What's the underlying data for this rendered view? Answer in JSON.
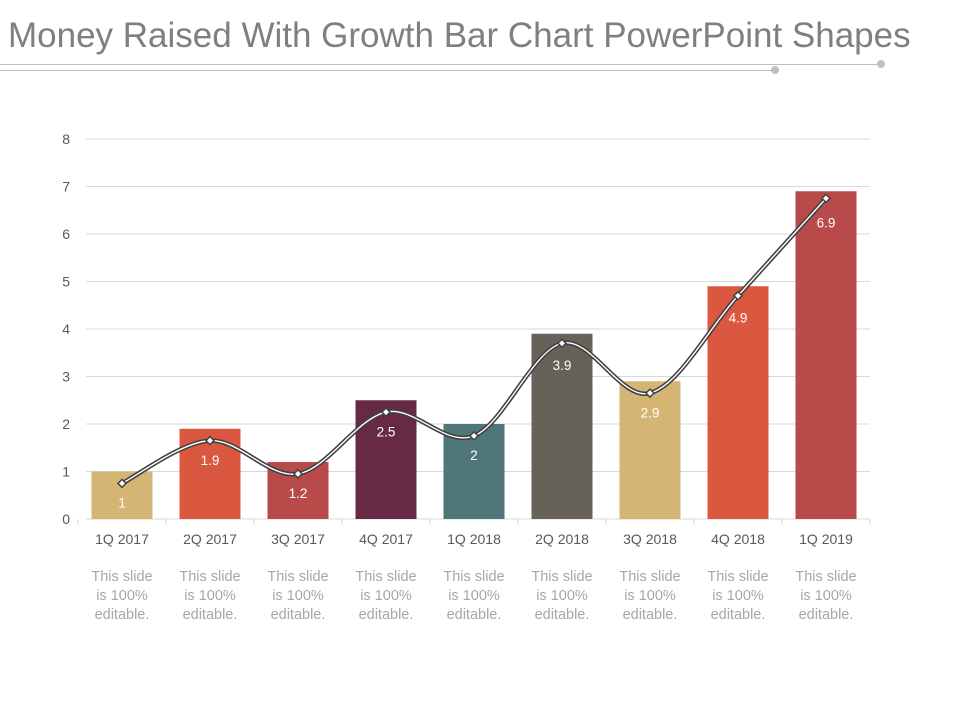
{
  "title": "Money Raised With Growth Bar Chart PowerPoint Shapes",
  "colors": {
    "title": "#7f7f7f",
    "grid": "#d9d9d9",
    "axis_text": "#595959",
    "note_text": "#a6a6a6",
    "label_text": "#ffffff",
    "line": "#404040",
    "bars": [
      "#d4b574",
      "#d9583f",
      "#b94a4a",
      "#672a44",
      "#4f777a",
      "#66625a",
      "#d4b574",
      "#d9583f",
      "#b94a4a"
    ]
  },
  "chart_data": {
    "type": "bar",
    "title": "",
    "xlabel": "",
    "ylabel": "",
    "ylim": [
      0,
      8
    ],
    "yticks": [
      0,
      1,
      2,
      3,
      4,
      5,
      6,
      7,
      8
    ],
    "grid": true,
    "categories": [
      "1Q 2017",
      "2Q 2017",
      "3Q 2017",
      "4Q 2017",
      "1Q 2018",
      "2Q 2018",
      "3Q 2018",
      "4Q 2018",
      "1Q 2019"
    ],
    "values": [
      1,
      1.9,
      1.2,
      2.5,
      2,
      3.9,
      2.9,
      4.9,
      6.9
    ],
    "data_labels": [
      "1",
      "1.9",
      "1.2",
      "2.5",
      "2",
      "3.9",
      "2.9",
      "4.9",
      "6.9"
    ],
    "trend_line": {
      "type": "smooth-line",
      "marker": "diamond",
      "values": [
        0.75,
        1.65,
        0.95,
        2.25,
        1.75,
        3.7,
        2.65,
        4.7,
        6.75
      ]
    }
  },
  "notes": [
    [
      "This slide",
      "is 100%",
      "editable."
    ],
    [
      "This slide",
      "is 100%",
      "editable."
    ],
    [
      "This slide",
      "is 100%",
      "editable."
    ],
    [
      "This slide",
      "is 100%",
      "editable."
    ],
    [
      "This slide",
      "is 100%",
      "editable."
    ],
    [
      "This slide",
      "is 100%",
      "editable."
    ],
    [
      "This slide",
      "is 100%",
      "editable."
    ],
    [
      "This slide",
      "is 100%",
      "editable."
    ],
    [
      "This slide",
      "is 100%",
      "editable."
    ]
  ]
}
